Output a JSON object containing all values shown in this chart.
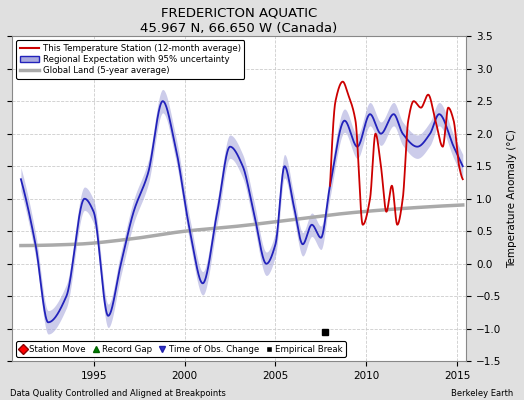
{
  "title": "FREDERICTON AQUATIC",
  "subtitle": "45.967 N, 66.650 W (Canada)",
  "xlabel_left": "Data Quality Controlled and Aligned at Breakpoints",
  "xlabel_right": "Berkeley Earth",
  "ylabel": "Temperature Anomaly (°C)",
  "xlim": [
    1990.5,
    2015.5
  ],
  "ylim": [
    -1.5,
    3.5
  ],
  "yticks": [
    -1.5,
    -1,
    -0.5,
    0,
    0.5,
    1,
    1.5,
    2,
    2.5,
    3,
    3.5
  ],
  "xticks": [
    1995,
    2000,
    2005,
    2010,
    2015
  ],
  "fig_bg_color": "#e0e0e0",
  "plot_bg_color": "#ffffff",
  "grid_color": "#cccccc",
  "red_line_color": "#cc0000",
  "blue_line_color": "#2222bb",
  "blue_band_color": "#aaaadd",
  "gray_line_color": "#aaaaaa",
  "empirical_break_x": 2007.7,
  "empirical_break_y": -1.05,
  "legend1_labels": [
    "This Temperature Station (12-month average)",
    "Regional Expectation with 95% uncertainty",
    "Global Land (5-year average)"
  ],
  "legend2_labels": [
    "Station Move",
    "Record Gap",
    "Time of Obs. Change",
    "Empirical Break"
  ]
}
